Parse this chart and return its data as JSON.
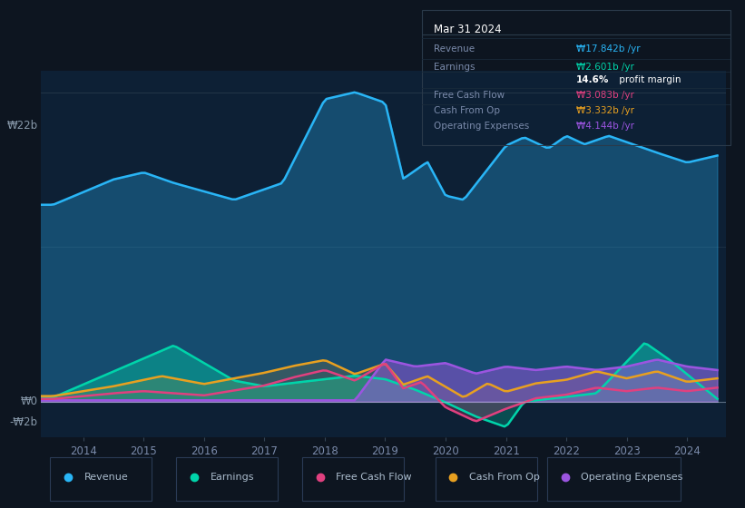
{
  "bg_color": "#0d1520",
  "chart_bg": "#0d2035",
  "title": "Mar 31 2024",
  "y_label_top": "₩22b",
  "y_label_mid": "₩0",
  "y_label_bot": "-₩2b",
  "x_ticks": [
    2014,
    2015,
    2016,
    2017,
    2018,
    2019,
    2020,
    2021,
    2022,
    2023,
    2024
  ],
  "revenue_color": "#29b5f6",
  "earnings_color": "#00d4aa",
  "fcf_color": "#e0407f",
  "cashop_color": "#e8a020",
  "opex_color": "#9b55e0",
  "legend_items": [
    "Revenue",
    "Earnings",
    "Free Cash Flow",
    "Cash From Op",
    "Operating Expenses"
  ],
  "tooltip_title": "Mar 31 2024",
  "tooltip_revenue": "₩17.842b /yr",
  "tooltip_earnings": "₩2.601b /yr",
  "tooltip_margin": "14.6% profit margin",
  "tooltip_fcf": "₩3.083b /yr",
  "tooltip_cashop": "₩3.332b /yr",
  "tooltip_opex": "₩4.144b /yr"
}
